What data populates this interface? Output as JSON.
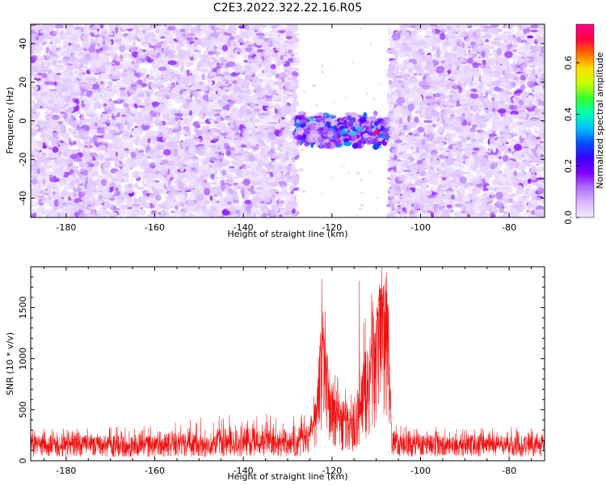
{
  "title": "C2E3.2022.322.22.16.R05",
  "colors": {
    "snr_line": "#ee1111",
    "axes": "#000000",
    "colormap": [
      "#f3eaff",
      "#d9b8ff",
      "#b070ff",
      "#8000ff",
      "#3a00ff",
      "#0050ff",
      "#00c0ff",
      "#00ffb0",
      "#30ff30",
      "#c8ff00",
      "#ffe000",
      "#ff7000",
      "#ff0040",
      "#ff0090"
    ]
  },
  "chart_data": [
    {
      "type": "heatmap",
      "title": "",
      "xlabel": "Height of straight line (km)",
      "ylabel": "Frequency (Hz)",
      "xlim": [
        -188,
        -72
      ],
      "ylim": [
        -50,
        50
      ],
      "x_ticks": [
        -180,
        -160,
        -140,
        -120,
        -100,
        -80
      ],
      "y_ticks": [
        -40,
        -20,
        0,
        20,
        40
      ],
      "x_tick_labels": [
        "-180",
        "-160",
        "-140",
        "-120",
        "-100",
        "-80"
      ],
      "y_tick_labels": [
        "-40",
        "-20",
        "0",
        "20",
        "40"
      ],
      "colorbar": {
        "label": "Normalized spectral amplitude",
        "range": [
          0,
          0.75
        ],
        "ticks": [
          0.0,
          0.2,
          0.4,
          0.6
        ],
        "tick_labels": [
          "0.0",
          "0.2",
          "0.4",
          "0.6"
        ]
      },
      "regions": [
        {
          "x_range": [
            -188,
            -128
          ],
          "freq_range": [
            -50,
            50
          ],
          "description": "broadband noise",
          "level": 0.06
        },
        {
          "x_range": [
            -128,
            -107
          ],
          "freq_range": [
            -15,
            5
          ],
          "description": "band near 0 Hz",
          "level": 0.4
        },
        {
          "x_range": [
            -107,
            -72
          ],
          "freq_range": [
            -50,
            50
          ],
          "description": "broadband noise",
          "level": 0.06
        }
      ],
      "peak": {
        "x": -110,
        "freq": -6,
        "amplitude": 0.72
      }
    },
    {
      "type": "line",
      "title": "",
      "xlabel": "Height of straight line (km)",
      "ylabel": "SNR (10 * v/v)",
      "xlim": [
        -188,
        -72
      ],
      "ylim": [
        0,
        1900
      ],
      "x_ticks": [
        -180,
        -160,
        -140,
        -120,
        -100,
        -80
      ],
      "y_ticks": [
        0,
        500,
        1000,
        1500
      ],
      "x_tick_labels": [
        "-180",
        "-160",
        "-140",
        "-120",
        "-100",
        "-80"
      ],
      "y_tick_labels": [
        "0",
        "500",
        "1000",
        "1500"
      ],
      "series": [
        {
          "profile_x": [
            -188,
            -175,
            -160,
            -145,
            -135,
            -128,
            -125,
            -123.5,
            -122.5,
            -122,
            -121,
            -120,
            -118,
            -116,
            -114,
            -112,
            -111,
            -110.5,
            -109.5,
            -108.5,
            -107.5,
            -107,
            -106.5,
            -105,
            -100,
            -90,
            -80,
            -72
          ],
          "profile_median": [
            150,
            150,
            150,
            155,
            160,
            180,
            240,
            420,
            1000,
            1200,
            720,
            520,
            380,
            350,
            400,
            650,
            900,
            980,
            1500,
            1600,
            1450,
            700,
            180,
            150,
            150,
            150,
            150,
            150
          ],
          "profile_max": [
            330,
            330,
            340,
            460,
            460,
            440,
            520,
            800,
            1780,
            1700,
            1260,
            980,
            800,
            700,
            920,
            1760,
            1830,
            1400,
            1900,
            1900,
            1900,
            1350,
            450,
            350,
            340,
            330,
            330,
            330
          ],
          "peaks": [
            [
              -122.3,
              1780
            ],
            [
              -113.8,
              1760
            ],
            [
              -108.8,
              1900
            ]
          ]
        }
      ]
    }
  ]
}
